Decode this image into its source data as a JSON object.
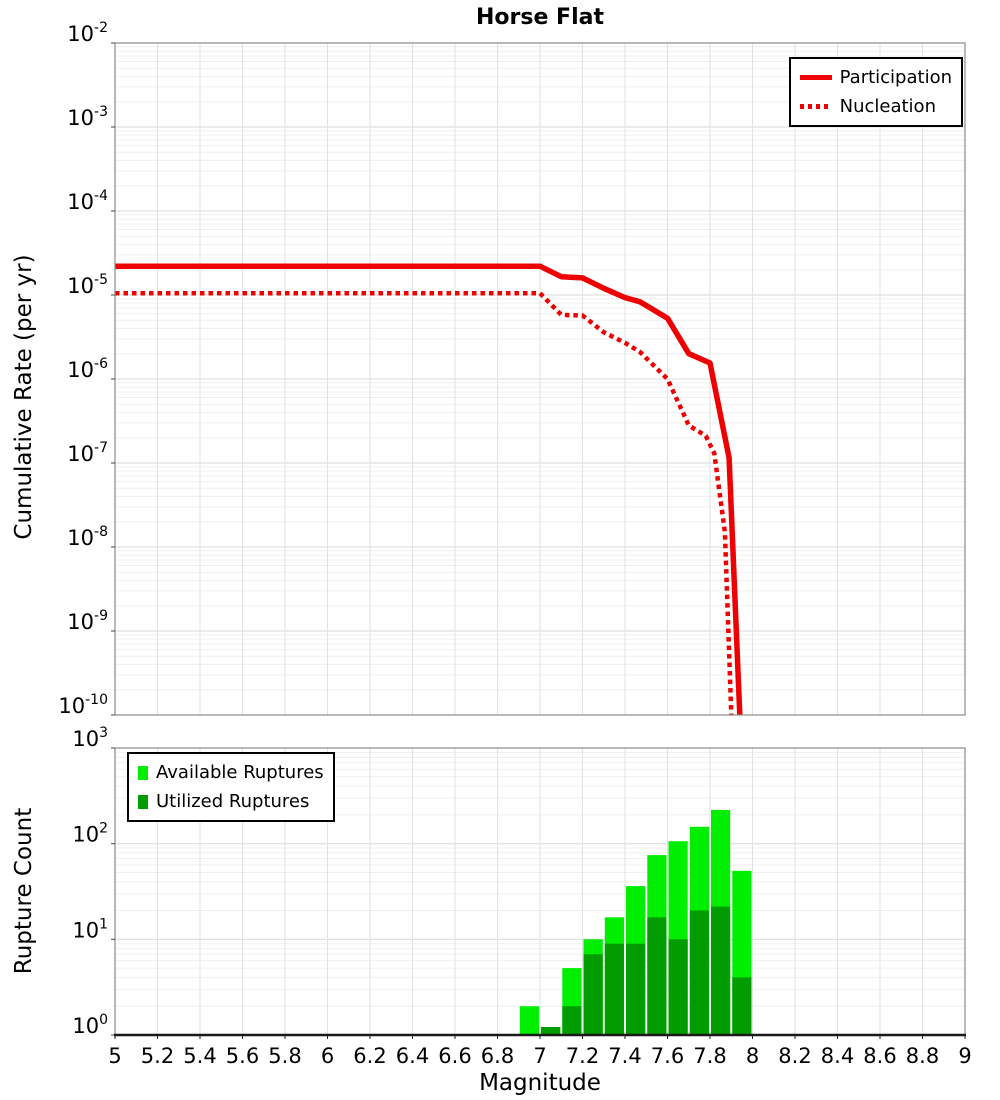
{
  "title": "Horse Flat",
  "colors": {
    "participation_red": "#ee0000",
    "available_green": "#00ee00",
    "utilized_green": "#009c00",
    "grid_major": "#d8d8d8",
    "grid_minor": "#efefef",
    "frame": "#8a8a8a"
  },
  "chart_data": [
    {
      "type": "line",
      "title": "Horse Flat",
      "xlabel": "Magnitude",
      "ylabel": "Cumulative Rate (per yr)",
      "x_range": [
        5,
        9
      ],
      "x_tick_step": 0.2,
      "y_log_range_exp": [
        -10,
        -2
      ],
      "y_tick_exponents": [
        -2,
        -3,
        -4,
        -5,
        -6,
        -7,
        -8,
        -9,
        -10
      ],
      "grid": true,
      "legend_position": "top-right",
      "legend_entries": [
        "Participation",
        "Nucleation"
      ],
      "series": [
        {
          "name": "Participation",
          "style": "solid",
          "color": "#ee0000",
          "width": 5.5,
          "points": [
            [
              5.0,
              2.2e-05
            ],
            [
              7.0,
              2.2e-05
            ],
            [
              7.1,
              1.65e-05
            ],
            [
              7.2,
              1.6e-05
            ],
            [
              7.3,
              1.2e-05
            ],
            [
              7.4,
              9.3e-06
            ],
            [
              7.47,
              8.3e-06
            ],
            [
              7.6,
              5.3e-06
            ],
            [
              7.7,
              2e-06
            ],
            [
              7.8,
              1.55e-06
            ],
            [
              7.89,
              1.15e-07
            ],
            [
              7.94,
              1e-10
            ]
          ]
        },
        {
          "name": "Nucleation",
          "style": "dotted",
          "color": "#ee0000",
          "width": 4.5,
          "points": [
            [
              5.0,
              1.05e-05
            ],
            [
              7.0,
              1.05e-05
            ],
            [
              7.1,
              5.8e-06
            ],
            [
              7.2,
              5.7e-06
            ],
            [
              7.3,
              3.6e-06
            ],
            [
              7.4,
              2.7e-06
            ],
            [
              7.47,
              2.1e-06
            ],
            [
              7.6,
              1e-06
            ],
            [
              7.7,
              2.8e-07
            ],
            [
              7.78,
              2.1e-07
            ],
            [
              7.82,
              1.3e-07
            ],
            [
              7.87,
              1.5e-08
            ],
            [
              7.9,
              1e-10
            ]
          ]
        }
      ]
    },
    {
      "type": "bar",
      "title": "",
      "xlabel": "Magnitude",
      "ylabel": "Rupture Count",
      "x_range": [
        5,
        9
      ],
      "x_tick_step": 0.2,
      "x_tick_labels": [
        "5",
        "5.2",
        "5.4",
        "5.6",
        "5.8",
        "6",
        "6.2",
        "6.4",
        "6.6",
        "6.8",
        "7",
        "7.2",
        "7.4",
        "7.6",
        "7.8",
        "8",
        "8.2",
        "8.4",
        "8.6",
        "8.8",
        "9"
      ],
      "y_log_range_exp": [
        0,
        3
      ],
      "y_tick_exponents": [
        3,
        2,
        1,
        0
      ],
      "grid": true,
      "legend_position": "top-left",
      "legend_entries": [
        "Available Ruptures",
        "Utilized Ruptures"
      ],
      "bin_width": 0.1,
      "categories": [
        6.95,
        7.05,
        7.15,
        7.25,
        7.35,
        7.45,
        7.55,
        7.65,
        7.75,
        7.85,
        7.95
      ],
      "series": [
        {
          "name": "Available Ruptures",
          "color": "#00ee00",
          "values": [
            2,
            1,
            5,
            10,
            17,
            36,
            76,
            106,
            150,
            225,
            52
          ]
        },
        {
          "name": "Utilized Ruptures",
          "color": "#009c00",
          "values": [
            0,
            1,
            2,
            7,
            9,
            9,
            17,
            10,
            20,
            22,
            4
          ]
        }
      ]
    }
  ]
}
